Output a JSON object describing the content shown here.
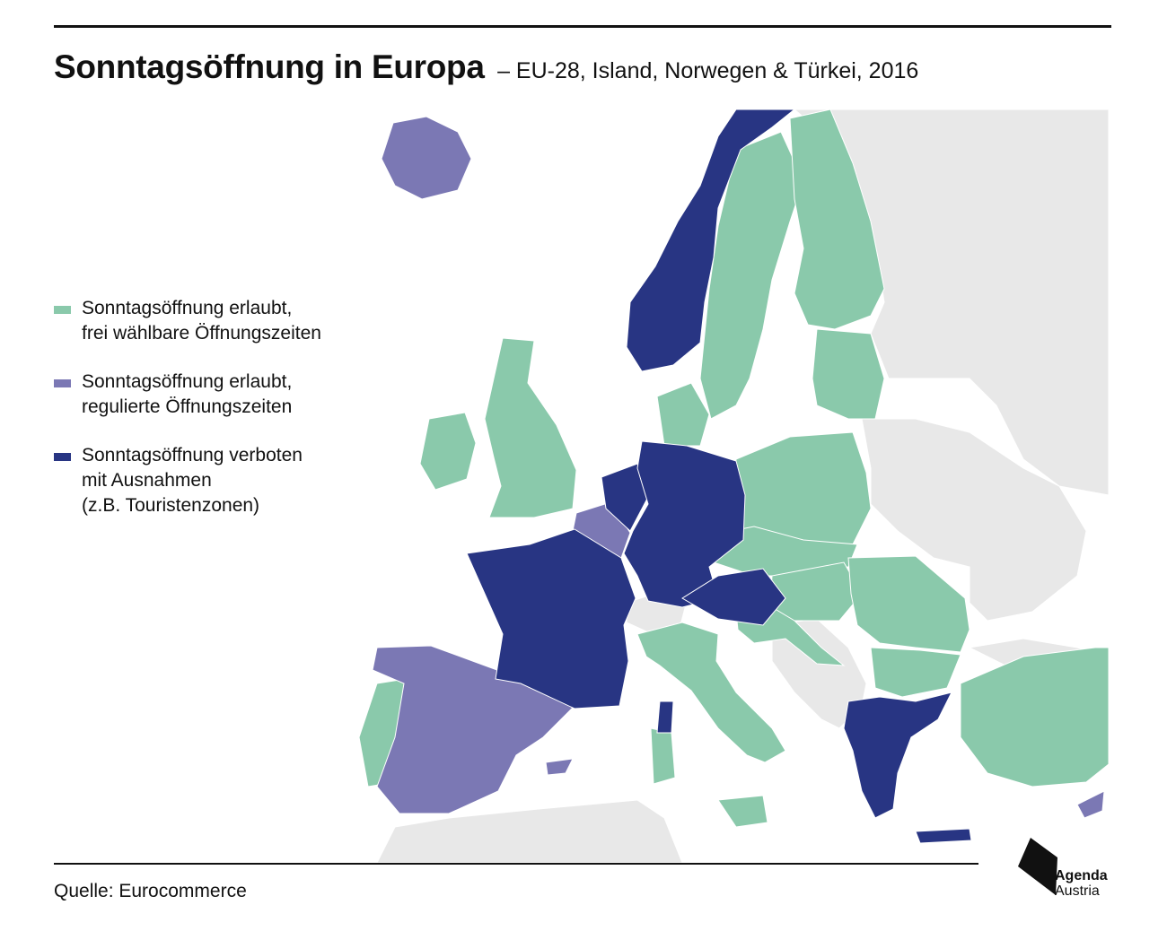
{
  "header": {
    "title": "Sonntagsöffnung in Europa",
    "subtitle": "– EU-28, Island, Norwegen & Türkei, 2016"
  },
  "legend": {
    "items": [
      {
        "lines": [
          "Sonntagsöffnung erlaubt,",
          "frei wählbare Öffnungszeiten"
        ],
        "color": "#8ac9ab"
      },
      {
        "lines": [
          "Sonntagsöffnung erlaubt,",
          "regulierte Öffnungszeiten"
        ],
        "color": "#7b78b4"
      },
      {
        "lines": [
          "Sonntagsöffnung verboten",
          "mit Ausnahmen",
          "(z.B. Touristenzonen)"
        ],
        "color": "#283583"
      }
    ]
  },
  "footer": {
    "source": "Quelle: Eurocommerce"
  },
  "logo": {
    "line1": "Agenda",
    "line2": "Austria"
  },
  "colors": {
    "free": "#8ac9ab",
    "regulated": "#7b78b4",
    "banned": "#283583",
    "other": "#e8e8e8",
    "sea": "#ffffff"
  }
}
